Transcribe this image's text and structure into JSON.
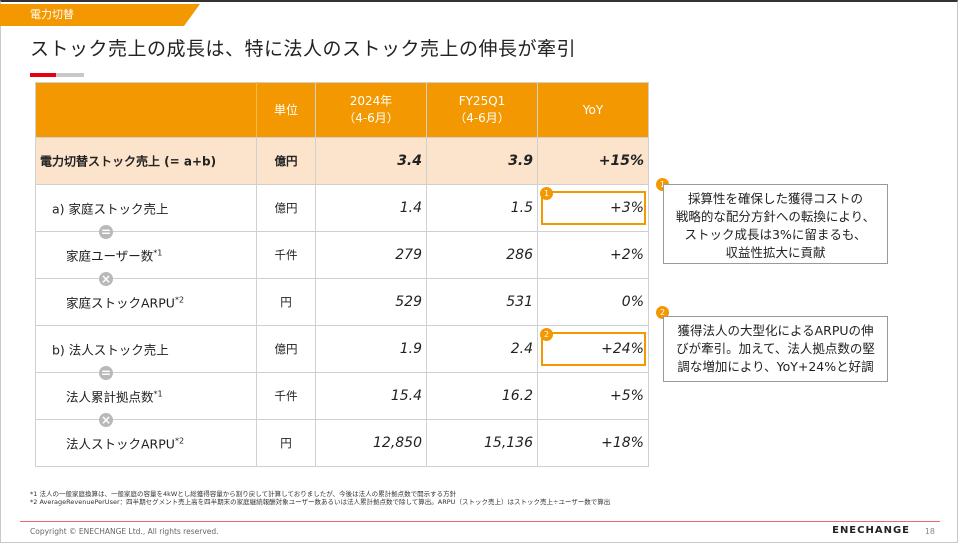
{
  "header": {
    "section_tag": "電力切替",
    "title": "ストック売上の成長は、特に法人のストック売上の伸長が牽引"
  },
  "table": {
    "headers": {
      "unit": "単位",
      "col1": [
        "2024年",
        "（4-6月）"
      ],
      "col2": [
        "FY25Q1",
        "（4-6月）"
      ],
      "yoy": "YoY"
    },
    "rows": [
      {
        "label": "電力切替ストック売上 (= a+b)",
        "sup": "",
        "unit": "億円",
        "v1": "3.4",
        "v2": "3.9",
        "yoy": "+15%"
      },
      {
        "label": "a) 家庭ストック売上",
        "sup": "",
        "unit": "億円",
        "v1": "1.4",
        "v2": "1.5",
        "yoy": "+3%"
      },
      {
        "label": "家庭ユーザー数",
        "sup": "*1",
        "unit": "千件",
        "v1": "279",
        "v2": "286",
        "yoy": "+2%"
      },
      {
        "label": "家庭ストックARPU",
        "sup": "*2",
        "unit": "円",
        "v1": "529",
        "v2": "531",
        "yoy": "0%"
      },
      {
        "label": "b) 法人ストック売上",
        "sup": "",
        "unit": "億円",
        "v1": "1.9",
        "v2": "2.4",
        "yoy": "+24%"
      },
      {
        "label": "法人累計拠点数",
        "sup": "*1",
        "unit": "千件",
        "v1": "15.4",
        "v2": "16.2",
        "yoy": "+5%"
      },
      {
        "label": "法人ストックARPU",
        "sup": "*2",
        "unit": "円",
        "v1": "12,850",
        "v2": "15,136",
        "yoy": "+18%"
      }
    ],
    "operators": {
      "equals": "=",
      "times": "×"
    }
  },
  "badges": {
    "one": "1",
    "two": "2"
  },
  "notes": {
    "note1": [
      "採算性を確保した獲得コストの",
      "戦略的な配分方針への転換により、",
      "ストック成長は3%に留まるも、",
      "収益性拡大に貢献"
    ],
    "note2": [
      "獲得法人の大型化によるARPUの伸",
      "びが牽引。加えて、法人拠点数の堅",
      "調な増加により、YoY+24%と好調"
    ]
  },
  "footnotes": [
    "*1 法人の一般家庭換算は、一般家庭の容量を4kWとし総獲得容量から割り戻して計算しておりましたが、今後は法人の累計拠点数で開示する方針",
    "*2 AverageRevenuePerUser：四半期セグメント売上高を四半期末の家庭継続報酬対象ユーザー数あるいは法人累計拠点数で除して算出。ARPU（ストック売上）はストック売上÷ユーザー数で算出"
  ],
  "footer": {
    "copyright": "Copyright ©  ENECHANGE Ltd.,  All rights reserved.",
    "logo": "ENECHANGE",
    "page": "18"
  },
  "colors": {
    "accent": "#f39800",
    "total_row": "#fbe3cc",
    "brand_red": "#e60012"
  }
}
